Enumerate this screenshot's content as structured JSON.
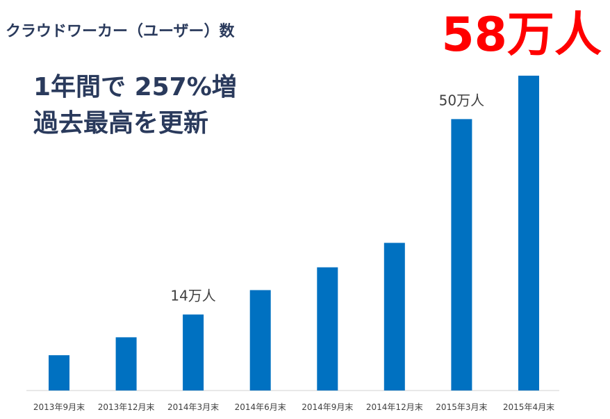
{
  "chart_data": {
    "type": "bar",
    "title": "クラウドワーカー（ユーザー）数",
    "headline_lines": [
      "1年間で 257%増",
      "過去最高を更新"
    ],
    "highlight_value": "58万人",
    "categories": [
      "2013年9月末",
      "2013年12月末",
      "2014年3月末",
      "2014年6月末",
      "2014年9月末",
      "2014年12月末",
      "2015年3月末",
      "2015年4月末"
    ],
    "values": [
      6.5,
      9.8,
      14,
      18.5,
      22.7,
      27.2,
      50,
      58
    ],
    "value_unit": "万人",
    "ylim": [
      0,
      58.5
    ],
    "grid": false,
    "bar_color": "#0071c1",
    "highlight_color": "#ff0000",
    "annotations": [
      {
        "category_index": 2,
        "text": "14万人"
      },
      {
        "category_index": 6,
        "text": "50万人"
      }
    ]
  }
}
